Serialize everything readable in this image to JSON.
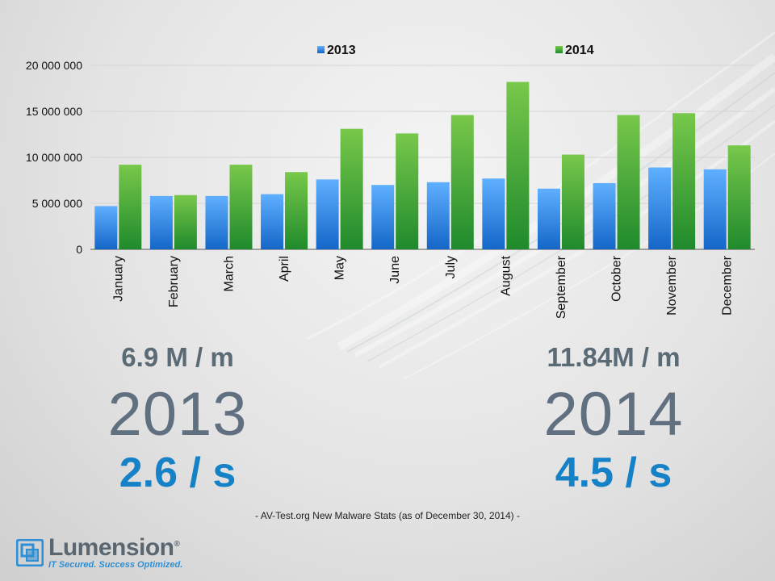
{
  "chart_data": {
    "type": "bar",
    "categories": [
      "January",
      "February",
      "March",
      "April",
      "May",
      "June",
      "July",
      "August",
      "September",
      "October",
      "November",
      "December"
    ],
    "series": [
      {
        "name": "2013",
        "values": [
          4700000,
          5800000,
          5800000,
          6000000,
          7600000,
          7000000,
          7300000,
          7700000,
          6600000,
          7200000,
          8900000,
          8700000
        ],
        "color": "#2f86e0"
      },
      {
        "name": "2014",
        "values": [
          9200000,
          5900000,
          9200000,
          8400000,
          13100000,
          12600000,
          14600000,
          18200000,
          10300000,
          14600000,
          14800000,
          11300000
        ],
        "color": "#3aa33a"
      }
    ],
    "ylim": [
      0,
      20000000
    ],
    "yticks": [
      0,
      5000000,
      10000000,
      15000000,
      20000000
    ],
    "ytick_labels": [
      "0",
      "5 000 000",
      "10 000 000",
      "15 000 000",
      "20 000 000"
    ],
    "legend_position": "top",
    "grid": true
  },
  "stats": {
    "y2013": {
      "monthly": "6.9 M / m",
      "year": "2013",
      "rate": "2.6 / s"
    },
    "y2014": {
      "monthly": "11.84M / m",
      "year": "2014",
      "rate": "4.5 / s"
    }
  },
  "source_note": "- AV-Test.org New Malware Stats (as of December 30, 2014) -",
  "logo": {
    "name": "Lumension",
    "trademark": "®",
    "tagline": "IT Secured. Success Optimized."
  }
}
